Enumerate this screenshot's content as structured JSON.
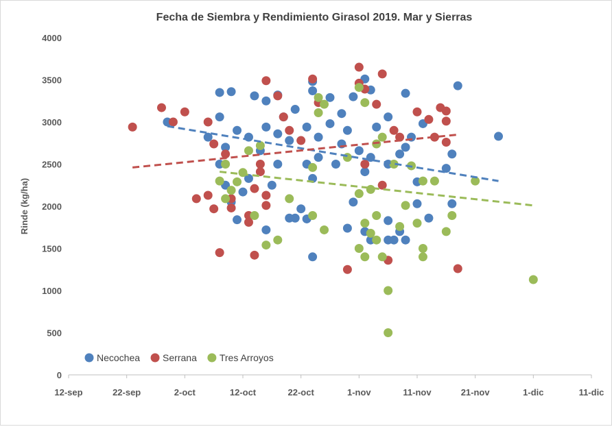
{
  "chart_data": {
    "type": "scatter",
    "title": "Fecha de Siembra y Rendimiento Girasol 2019. Mar y Sierras",
    "ylabel": "Rinde (kg/ha)",
    "xlim": [
      "2019-09-12",
      "2019-12-11"
    ],
    "xticks": [
      {
        "value": "2019-09-12",
        "label": "12-sep"
      },
      {
        "value": "2019-09-22",
        "label": "22-sep"
      },
      {
        "value": "2019-10-02",
        "label": "2-oct"
      },
      {
        "value": "2019-10-12",
        "label": "12-oct"
      },
      {
        "value": "2019-10-22",
        "label": "22-oct"
      },
      {
        "value": "2019-11-01",
        "label": "1-nov"
      },
      {
        "value": "2019-11-11",
        "label": "11-nov"
      },
      {
        "value": "2019-11-21",
        "label": "21-nov"
      },
      {
        "value": "2019-12-01",
        "label": "1-dic"
      },
      {
        "value": "2019-12-11",
        "label": "11-dic"
      }
    ],
    "ylim": [
      0,
      4000
    ],
    "yticks": [
      0,
      500,
      1000,
      1500,
      2000,
      2500,
      3000,
      3500,
      4000
    ],
    "grid": false,
    "legend": "lower left",
    "series": [
      {
        "name": "Necochea",
        "color": "#4f81bd",
        "x": [
          "2019-09-29",
          "2019-10-08",
          "2019-10-10",
          "2019-10-08",
          "2019-10-06",
          "2019-10-08",
          "2019-10-11",
          "2019-10-14",
          "2019-10-16",
          "2019-10-18",
          "2019-10-19",
          "2019-10-21",
          "2019-10-24",
          "2019-10-24",
          "2019-10-27",
          "2019-10-29",
          "2019-10-31",
          "2019-11-02",
          "2019-11-03",
          "2019-11-06",
          "2019-11-09",
          "2019-11-18",
          "2019-11-25",
          "2019-11-16",
          "2019-11-17",
          "2019-11-17",
          "2019-11-11",
          "2019-11-11",
          "2019-11-13",
          "2019-11-09",
          "2019-11-07",
          "2019-11-06",
          "2019-11-08",
          "2019-11-06",
          "2019-11-03",
          "2019-11-02",
          "2019-10-30",
          "2019-10-31",
          "2019-10-24",
          "2019-10-23",
          "2019-10-21",
          "2019-10-22",
          "2019-10-20",
          "2019-10-17",
          "2019-10-16",
          "2019-10-12",
          "2019-10-09",
          "2019-10-10",
          "2019-10-13",
          "2019-10-15",
          "2019-10-18",
          "2019-10-23",
          "2019-10-25",
          "2019-10-28",
          "2019-10-29",
          "2019-11-01",
          "2019-11-03",
          "2019-11-06",
          "2019-11-08",
          "2019-11-09",
          "2019-11-10",
          "2019-11-12",
          "2019-10-11",
          "2019-10-13",
          "2019-10-16",
          "2019-10-18",
          "2019-10-20",
          "2019-10-23",
          "2019-10-25",
          "2019-10-27",
          "2019-10-30",
          "2019-11-04",
          "2019-10-09",
          "2019-10-24",
          "2019-11-02"
        ],
        "values": [
          3000,
          3350,
          3360,
          3060,
          2820,
          2500,
          1840,
          3310,
          3250,
          3320,
          3060,
          3150,
          3370,
          3480,
          3290,
          3100,
          3300,
          3510,
          3380,
          3060,
          3340,
          3430,
          2830,
          2450,
          2030,
          2620,
          2290,
          2030,
          1860,
          1600,
          1600,
          1600,
          1700,
          1830,
          1600,
          1700,
          1740,
          2050,
          1400,
          1850,
          1860,
          1970,
          1860,
          2250,
          1720,
          2170,
          2250,
          2050,
          2330,
          2660,
          2500,
          2500,
          2580,
          2500,
          2740,
          2660,
          2580,
          2500,
          2620,
          2700,
          2820,
          2980,
          2900,
          2820,
          2940,
          2860,
          2780,
          2940,
          2820,
          2980,
          2900,
          2940,
          2700,
          2330,
          2410
        ],
        "trendline": {
          "x": [
            "2019-09-29",
            "2019-11-25"
          ],
          "values": [
            2950,
            2300
          ]
        }
      },
      {
        "name": "Serrana",
        "color": "#c0504d",
        "x": [
          "2019-09-23",
          "2019-09-28",
          "2019-10-02",
          "2019-09-30",
          "2019-10-04",
          "2019-10-06",
          "2019-10-07",
          "2019-10-08",
          "2019-10-06",
          "2019-10-07",
          "2019-10-09",
          "2019-10-10",
          "2019-10-10",
          "2019-10-13",
          "2019-10-13",
          "2019-10-14",
          "2019-10-14",
          "2019-10-15",
          "2019-10-15",
          "2019-10-16",
          "2019-10-16",
          "2019-10-16",
          "2019-10-18",
          "2019-10-19",
          "2019-10-20",
          "2019-10-22",
          "2019-10-24",
          "2019-10-25",
          "2019-10-30",
          "2019-11-01",
          "2019-11-01",
          "2019-11-02",
          "2019-11-04",
          "2019-11-05",
          "2019-11-02",
          "2019-11-05",
          "2019-11-06",
          "2019-11-07",
          "2019-11-08",
          "2019-11-11",
          "2019-11-13",
          "2019-11-15",
          "2019-11-16",
          "2019-11-16",
          "2019-11-16",
          "2019-11-18",
          "2019-11-14"
        ],
        "values": [
          2940,
          3170,
          3120,
          3000,
          2090,
          2130,
          1970,
          1450,
          3000,
          2740,
          2620,
          2090,
          1980,
          1890,
          1810,
          1420,
          2210,
          2500,
          2410,
          3490,
          2130,
          2010,
          3310,
          3060,
          2900,
          2780,
          3510,
          3230,
          1250,
          3650,
          3460,
          3390,
          3210,
          3570,
          2500,
          2250,
          1360,
          2900,
          2820,
          3120,
          3030,
          3170,
          3130,
          3010,
          2760,
          1260,
          2820
        ],
        "trendline": {
          "x": [
            "2019-09-23",
            "2019-11-18"
          ],
          "values": [
            2460,
            2850
          ]
        }
      },
      {
        "name": "Tres Arroyos",
        "color": "#9bbb59",
        "x": [
          "2019-10-08",
          "2019-10-09",
          "2019-10-09",
          "2019-10-10",
          "2019-10-11",
          "2019-10-12",
          "2019-10-14",
          "2019-10-16",
          "2019-10-18",
          "2019-10-15",
          "2019-10-13",
          "2019-10-20",
          "2019-10-24",
          "2019-10-25",
          "2019-10-25",
          "2019-10-26",
          "2019-10-26",
          "2019-10-24",
          "2019-10-30",
          "2019-11-01",
          "2019-11-02",
          "2019-11-02",
          "2019-11-03",
          "2019-11-04",
          "2019-11-05",
          "2019-11-04",
          "2019-11-01",
          "2019-11-03",
          "2019-11-04",
          "2019-11-05",
          "2019-11-06",
          "2019-11-06",
          "2019-11-07",
          "2019-11-08",
          "2019-11-09",
          "2019-11-10",
          "2019-11-11",
          "2019-11-12",
          "2019-11-12",
          "2019-11-12",
          "2019-11-14",
          "2019-11-16",
          "2019-11-17",
          "2019-11-21",
          "2019-12-01",
          "2019-11-01",
          "2019-11-02"
        ],
        "values": [
          2300,
          2500,
          2090,
          2190,
          2290,
          2400,
          1890,
          1540,
          1600,
          2720,
          2660,
          2090,
          1890,
          3290,
          3110,
          3210,
          1720,
          2460,
          2580,
          1500,
          1800,
          1400,
          1680,
          1600,
          1400,
          1890,
          2150,
          2200,
          2740,
          2820,
          1000,
          500,
          2500,
          1760,
          2010,
          2480,
          1800,
          1500,
          1400,
          2300,
          2300,
          1700,
          1890,
          2300,
          1130,
          3410,
          3230
        ],
        "trendline": {
          "x": [
            "2019-10-08",
            "2019-12-01"
          ],
          "values": [
            2410,
            2010
          ]
        }
      }
    ]
  }
}
